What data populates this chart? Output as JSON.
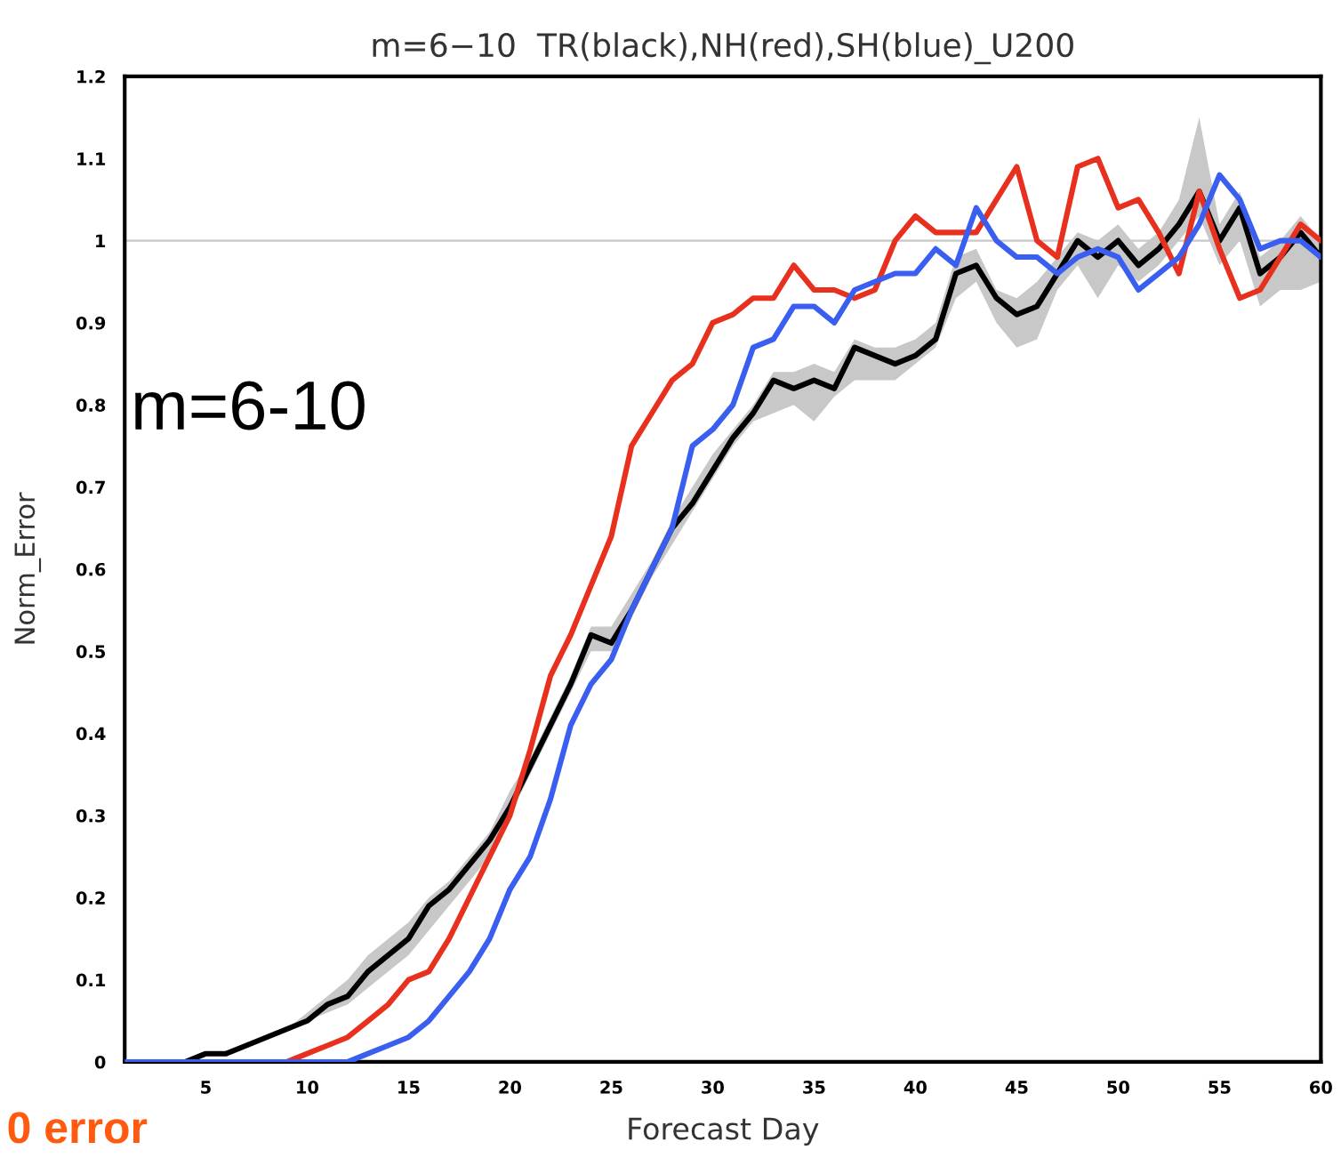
{
  "chart_data": {
    "type": "line",
    "title": "m=6−10  TR(black),NH(red),SH(blue)_U200",
    "xlabel": "Forecast Day",
    "ylabel": "Norm_Error",
    "x": [
      1,
      2,
      3,
      4,
      5,
      6,
      7,
      8,
      9,
      10,
      11,
      12,
      13,
      14,
      15,
      16,
      17,
      18,
      19,
      20,
      21,
      22,
      23,
      24,
      25,
      26,
      27,
      28,
      29,
      30,
      31,
      32,
      33,
      34,
      35,
      36,
      37,
      38,
      39,
      40,
      41,
      42,
      43,
      44,
      45,
      46,
      47,
      48,
      49,
      50,
      51,
      52,
      53,
      54,
      55,
      56,
      57,
      58,
      59,
      60
    ],
    "series": [
      {
        "color": "#000000",
        "values": [
          0,
          0,
          0,
          0,
          0.01,
          0.01,
          0.02,
          0.03,
          0.04,
          0.05,
          0.07,
          0.08,
          0.11,
          0.13,
          0.15,
          0.19,
          0.21,
          0.24,
          0.27,
          0.31,
          0.36,
          0.41,
          0.46,
          0.52,
          0.51,
          0.55,
          0.6,
          0.65,
          0.68,
          0.72,
          0.76,
          0.79,
          0.83,
          0.82,
          0.83,
          0.82,
          0.87,
          0.86,
          0.85,
          0.86,
          0.88,
          0.96,
          0.97,
          0.93,
          0.91,
          0.92,
          0.96,
          1.0,
          0.98,
          1.0,
          0.97,
          0.99,
          1.02,
          1.06,
          1.0,
          1.04,
          0.96,
          0.98,
          1.01,
          0.98
        ],
        "lower": [
          0,
          0,
          0,
          0,
          0.01,
          0.01,
          0.02,
          0.03,
          0.04,
          0.05,
          0.06,
          0.07,
          0.09,
          0.11,
          0.13,
          0.16,
          0.19,
          0.22,
          0.25,
          0.3,
          0.35,
          0.4,
          0.45,
          0.5,
          0.5,
          0.54,
          0.59,
          0.63,
          0.67,
          0.71,
          0.75,
          0.78,
          0.79,
          0.8,
          0.78,
          0.81,
          0.83,
          0.83,
          0.83,
          0.85,
          0.87,
          0.93,
          0.95,
          0.9,
          0.87,
          0.88,
          0.94,
          0.97,
          0.93,
          0.97,
          0.95,
          0.97,
          1.0,
          1.03,
          0.97,
          1.0,
          0.92,
          0.94,
          0.94,
          0.95
        ],
        "upper": [
          0,
          0,
          0,
          0,
          0.01,
          0.01,
          0.02,
          0.03,
          0.04,
          0.06,
          0.08,
          0.1,
          0.13,
          0.15,
          0.17,
          0.2,
          0.22,
          0.25,
          0.28,
          0.33,
          0.37,
          0.42,
          0.47,
          0.53,
          0.53,
          0.57,
          0.61,
          0.66,
          0.7,
          0.74,
          0.77,
          0.8,
          0.84,
          0.84,
          0.85,
          0.84,
          0.88,
          0.87,
          0.87,
          0.88,
          0.9,
          0.98,
          0.99,
          0.94,
          0.93,
          0.95,
          0.98,
          1.01,
          1.0,
          1.02,
          0.99,
          1.01,
          1.05,
          1.15,
          1.02,
          1.06,
          0.98,
          1.0,
          1.03,
          1.0
        ]
      },
      {
        "color": "#e8301e",
        "values": [
          null,
          null,
          null,
          null,
          null,
          null,
          null,
          0,
          0,
          0.01,
          0.02,
          0.03,
          0.05,
          0.07,
          0.1,
          0.11,
          0.15,
          0.2,
          0.25,
          0.3,
          0.38,
          0.47,
          0.52,
          0.58,
          0.64,
          0.75,
          0.79,
          0.83,
          0.85,
          0.9,
          0.91,
          0.93,
          0.93,
          0.97,
          0.94,
          0.94,
          0.93,
          0.94,
          1.0,
          1.03,
          1.01,
          1.01,
          1.01,
          1.05,
          1.09,
          1.0,
          0.98,
          1.09,
          1.1,
          1.04,
          1.05,
          1.01,
          0.96,
          1.06,
          0.99,
          0.93,
          0.94,
          0.98,
          1.02,
          1.0
        ]
      },
      {
        "color": "#3a5ef0",
        "values": [
          0,
          0,
          0,
          0,
          0,
          0,
          0,
          0,
          0,
          0,
          0,
          0,
          0.01,
          0.02,
          0.03,
          0.05,
          0.08,
          0.11,
          0.15,
          0.21,
          0.25,
          0.32,
          0.41,
          0.46,
          0.49,
          0.55,
          0.6,
          0.65,
          0.75,
          0.77,
          0.8,
          0.87,
          0.88,
          0.92,
          0.92,
          0.9,
          0.94,
          0.95,
          0.96,
          0.96,
          0.99,
          0.97,
          1.04,
          1.0,
          0.98,
          0.98,
          0.96,
          0.98,
          0.99,
          0.98,
          0.94,
          0.96,
          0.98,
          1.02,
          1.08,
          1.05,
          0.99,
          1.0,
          1.0,
          0.98
        ]
      }
    ],
    "xlim": [
      1,
      60
    ],
    "xticks": [
      5,
      10,
      15,
      20,
      25,
      30,
      35,
      40,
      45,
      50,
      55,
      60
    ],
    "ylim": [
      0,
      1.2
    ],
    "yticks": [
      0,
      0.1,
      0.2,
      0.3,
      0.4,
      0.5,
      0.6,
      0.7,
      0.8,
      0.9,
      1,
      1.1,
      1.2
    ],
    "ref_lines": [
      {
        "axis": "y",
        "value": 1,
        "color": "#c8c8c8"
      }
    ],
    "annotations": [
      "m=6-10",
      "0 error"
    ],
    "grid": false,
    "legend": false,
    "marker": "none",
    "line_style": "solid"
  }
}
